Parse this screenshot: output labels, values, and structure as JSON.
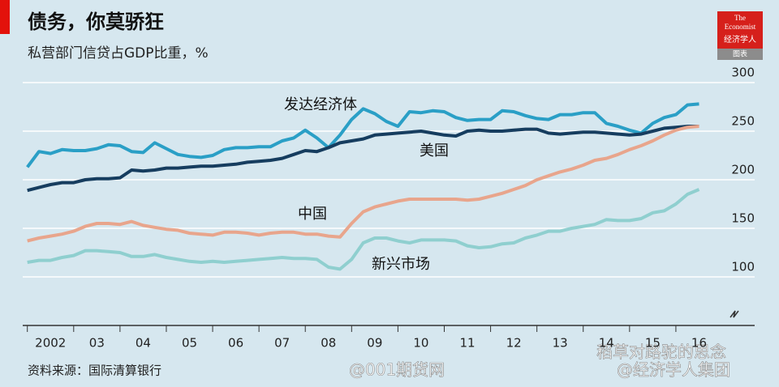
{
  "chart_data": {
    "type": "line",
    "title": "债务，你莫骄狂",
    "subtitle": "私营部门信贷占GDP比重，%",
    "source": "资料来源：国际清算银行",
    "logo": {
      "line1": "The",
      "line2": "Economist",
      "line3": "经济学人",
      "caption": "图表"
    },
    "watermarks": [
      "@001期货网",
      "稻草对路驼的思念",
      "@经济学人集团"
    ],
    "x": [
      2002.0,
      2002.25,
      2002.5,
      2002.75,
      2003.0,
      2003.25,
      2003.5,
      2003.75,
      2004.0,
      2004.25,
      2004.5,
      2004.75,
      2005.0,
      2005.25,
      2005.5,
      2005.75,
      2006.0,
      2006.25,
      2006.5,
      2006.75,
      2007.0,
      2007.25,
      2007.5,
      2007.75,
      2008.0,
      2008.25,
      2008.5,
      2008.75,
      2009.0,
      2009.25,
      2009.5,
      2009.75,
      2010.0,
      2010.25,
      2010.5,
      2010.75,
      2011.0,
      2011.25,
      2011.5,
      2011.75,
      2012.0,
      2012.25,
      2012.5,
      2012.75,
      2013.0,
      2013.25,
      2013.5,
      2013.75,
      2014.0,
      2014.25,
      2014.5,
      2014.75,
      2015.0,
      2015.25,
      2015.5,
      2015.75,
      2016.0,
      2016.25,
      2016.5
    ],
    "xlim": [
      2001.9,
      2017.0
    ],
    "xticks": [
      {
        "value": 2002.5,
        "label": "2002"
      },
      {
        "value": 2003.5,
        "label": "03"
      },
      {
        "value": 2004.5,
        "label": "04"
      },
      {
        "value": 2005.5,
        "label": "05"
      },
      {
        "value": 2006.5,
        "label": "06"
      },
      {
        "value": 2007.5,
        "label": "07"
      },
      {
        "value": 2008.5,
        "label": "08"
      },
      {
        "value": 2009.5,
        "label": "09"
      },
      {
        "value": 2010.5,
        "label": "10"
      },
      {
        "value": 2011.5,
        "label": "11"
      },
      {
        "value": 2012.5,
        "label": "12"
      },
      {
        "value": 2013.5,
        "label": "13"
      },
      {
        "value": 2014.5,
        "label": "14"
      },
      {
        "value": 2015.5,
        "label": "15"
      },
      {
        "value": 2016.5,
        "label": "16"
      }
    ],
    "ylim": [
      50,
      310
    ],
    "yticks": [
      100,
      150,
      200,
      250,
      300
    ],
    "grid": true,
    "series": [
      {
        "name": "发达经济体",
        "color": "#2a9fc6",
        "values": [
          213,
          229,
          227,
          231,
          230,
          230,
          232,
          236,
          235,
          229,
          228,
          238,
          232,
          226,
          224,
          223,
          225,
          231,
          233,
          233,
          234,
          234,
          240,
          243,
          251,
          243,
          233,
          246,
          262,
          273,
          268,
          260,
          255,
          270,
          269,
          271,
          270,
          264,
          261,
          262,
          262,
          271,
          270,
          266,
          263,
          262,
          267,
          267,
          269,
          269,
          258,
          255,
          251,
          248,
          258,
          264,
          267,
          277,
          278
        ]
      },
      {
        "name": "美国",
        "color": "#163d5f",
        "values": [
          189,
          192,
          195,
          197,
          197,
          200,
          201,
          201,
          202,
          210,
          209,
          210,
          212,
          212,
          213,
          214,
          214,
          215,
          216,
          218,
          219,
          220,
          222,
          226,
          230,
          229,
          233,
          238,
          240,
          242,
          246,
          247,
          248,
          249,
          250,
          248,
          246,
          245,
          250,
          251,
          250,
          250,
          251,
          252,
          252,
          248,
          247,
          248,
          249,
          249,
          248,
          247,
          246,
          247,
          250,
          253,
          254,
          255,
          255
        ]
      },
      {
        "name": "中国",
        "color": "#e8a58c",
        "values": [
          137,
          140,
          142,
          144,
          147,
          152,
          155,
          155,
          154,
          157,
          153,
          151,
          149,
          148,
          145,
          144,
          143,
          146,
          146,
          145,
          143,
          145,
          146,
          146,
          144,
          144,
          142,
          141,
          155,
          167,
          172,
          175,
          178,
          180,
          180,
          180,
          180,
          180,
          179,
          180,
          183,
          186,
          190,
          194,
          200,
          204,
          208,
          211,
          215,
          220,
          222,
          226,
          231,
          235,
          240,
          246,
          251,
          254,
          255
        ]
      },
      {
        "name": "新兴市场",
        "color": "#8fcfcf",
        "values": [
          115,
          117,
          117,
          120,
          122,
          127,
          127,
          126,
          125,
          121,
          121,
          123,
          120,
          118,
          116,
          115,
          116,
          115,
          116,
          117,
          118,
          119,
          120,
          119,
          119,
          118,
          110,
          108,
          118,
          135,
          140,
          140,
          137,
          135,
          138,
          138,
          138,
          137,
          132,
          130,
          131,
          134,
          135,
          140,
          143,
          147,
          147,
          150,
          152,
          154,
          159,
          158,
          158,
          160,
          166,
          168,
          175,
          185,
          190
        ]
      }
    ]
  }
}
